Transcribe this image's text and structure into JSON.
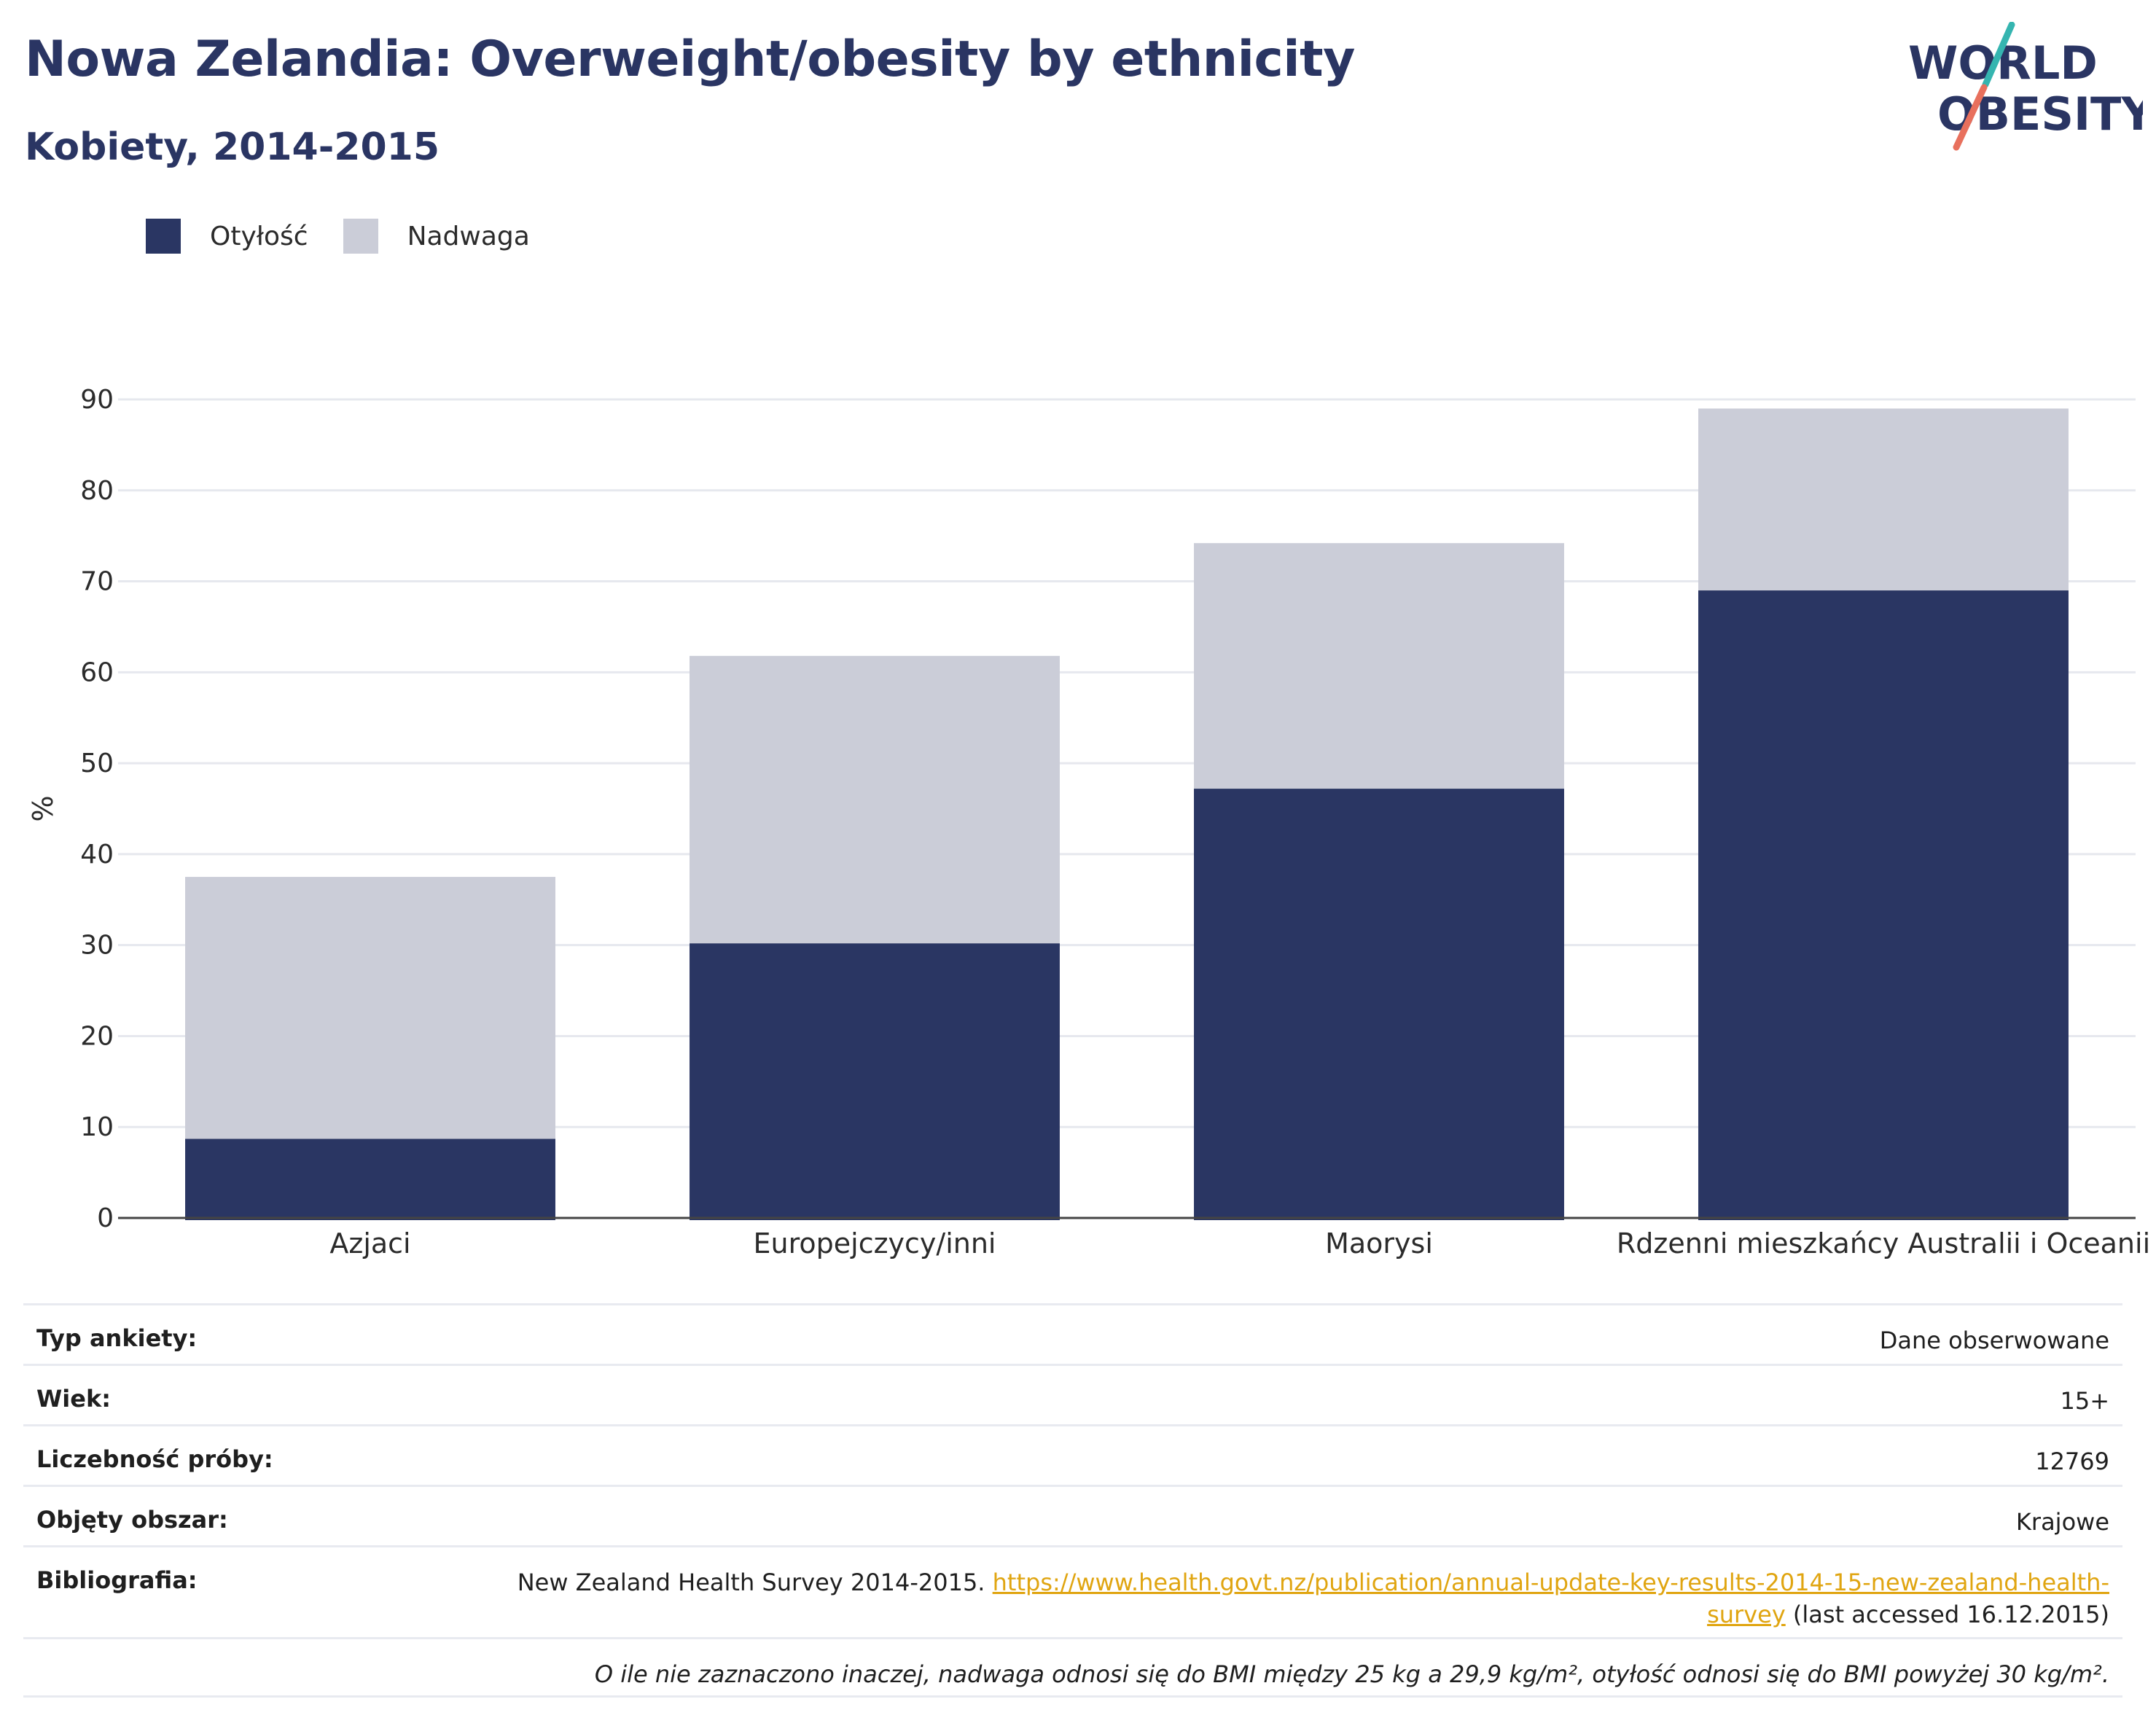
{
  "header": {
    "title": "Nowa Zelandia: Overweight/obesity by ethnicity",
    "subtitle": "Kobiety, 2014-2015"
  },
  "logo": {
    "line1": "WORLD",
    "line2": "OBESITY"
  },
  "colors": {
    "obesity": "#2a3663",
    "overweight": "#cbcdd8",
    "title": "#2a3563",
    "link": "#e0a511"
  },
  "chart_data": {
    "type": "bar",
    "stacked": true,
    "categories": [
      "Azjaci",
      "Europejczycy/inni",
      "Maorysi",
      "Rdzenni mieszkańcy Australii i Oceanii"
    ],
    "series": [
      {
        "name": "Otyłość",
        "values": [
          8.7,
          30.2,
          47.2,
          69.0
        ]
      },
      {
        "name": "Nadwaga",
        "values": [
          28.8,
          31.6,
          27.0,
          20.0
        ]
      }
    ],
    "totals": [
      37.5,
      61.8,
      74.2,
      89.0
    ],
    "ylabel": "%",
    "ylim": [
      0,
      90
    ],
    "yticks": [
      0,
      10,
      20,
      30,
      40,
      50,
      60,
      70,
      80,
      90
    ],
    "grid": true,
    "legend_position": "top-left"
  },
  "info": {
    "survey_type": {
      "label": "Typ ankiety:",
      "value": "Dane obserwowane"
    },
    "age": {
      "label": "Wiek:",
      "value": "15+"
    },
    "sample": {
      "label": "Liczebność próby:",
      "value": "12769"
    },
    "area": {
      "label": "Objęty obszar:",
      "value": "Krajowe"
    },
    "bibliography": {
      "label": "Bibliografia:",
      "text_before": "New Zealand Health Survey 2014-2015. ",
      "link_text": "https://www.health.govt.nz/publication/annual-update-key-results-2014-15-new-zealand-health-survey",
      "text_after": " (last accessed 16.12.2015)"
    },
    "note": "O ile nie zaznaczono inaczej, nadwaga odnosi się do BMI między 25 kg a 29,9 kg/m², otyłość odnosi się do BMI powyżej 30 kg/m²."
  }
}
